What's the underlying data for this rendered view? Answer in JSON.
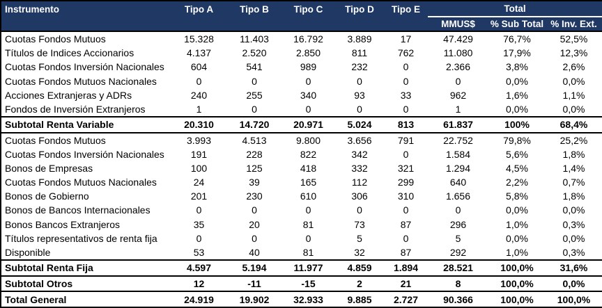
{
  "chart_data": {
    "type": "table",
    "header": {
      "instrument_label": "Instrumento",
      "type_columns": [
        "Tipo A",
        "Tipo B",
        "Tipo C",
        "Tipo D",
        "Tipo E"
      ],
      "total_label": "Total",
      "total_subcolumns": [
        "MMUS$",
        "% Sub Total",
        "% Inv. Ext."
      ]
    },
    "rows": [
      {
        "label": "Cuotas Fondos Mutuos",
        "values": [
          "15.328",
          "11.403",
          "16.792",
          "3.889",
          "17",
          "47.429",
          "76,7%",
          "52,5%"
        ],
        "bold": false
      },
      {
        "label": "Títulos de Indices Accionarios",
        "values": [
          "4.137",
          "2.520",
          "2.850",
          "811",
          "762",
          "11.080",
          "17,9%",
          "12,3%"
        ],
        "bold": false
      },
      {
        "label": "Cuotas Fondos Inversión Nacionales",
        "values": [
          "604",
          "541",
          "989",
          "232",
          "0",
          "2.366",
          "3,8%",
          "2,6%"
        ],
        "bold": false
      },
      {
        "label": "Cuotas Fondos Mutuos Nacionales",
        "values": [
          "0",
          "0",
          "0",
          "0",
          "0",
          "0",
          "0,0%",
          "0,0%"
        ],
        "bold": false
      },
      {
        "label": "Acciones Extranjeras y ADRs",
        "values": [
          "240",
          "255",
          "340",
          "93",
          "33",
          "962",
          "1,6%",
          "1,1%"
        ],
        "bold": false
      },
      {
        "label": "Fondos de Inversión Extranjeros",
        "values": [
          "1",
          "0",
          "0",
          "0",
          "0",
          "1",
          "0,0%",
          "0,0%"
        ],
        "bold": false
      },
      {
        "label": "Subtotal Renta Variable",
        "values": [
          "20.310",
          "14.720",
          "20.971",
          "5.024",
          "813",
          "61.837",
          "100%",
          "68,4%"
        ],
        "bold": true
      },
      {
        "label": "Cuotas Fondos Mutuos",
        "values": [
          "3.993",
          "4.513",
          "9.800",
          "3.656",
          "791",
          "22.752",
          "79,8%",
          "25,2%"
        ],
        "bold": false
      },
      {
        "label": "Cuotas Fondos Inversión Nacionales",
        "values": [
          "191",
          "228",
          "822",
          "342",
          "0",
          "1.584",
          "5,6%",
          "1,8%"
        ],
        "bold": false
      },
      {
        "label": "Bonos de Empresas",
        "values": [
          "100",
          "125",
          "418",
          "332",
          "321",
          "1.294",
          "4,5%",
          "1,4%"
        ],
        "bold": false
      },
      {
        "label": "Cuotas Fondos Mutuos Nacionales",
        "values": [
          "24",
          "39",
          "165",
          "112",
          "299",
          "640",
          "2,2%",
          "0,7%"
        ],
        "bold": false
      },
      {
        "label": "Bonos de Gobierno",
        "values": [
          "201",
          "230",
          "610",
          "306",
          "310",
          "1.656",
          "5,8%",
          "1,8%"
        ],
        "bold": false
      },
      {
        "label": "Bonos de Bancos Internacionales",
        "values": [
          "0",
          "0",
          "0",
          "0",
          "0",
          "0",
          "0,0%",
          "0,0%"
        ],
        "bold": false
      },
      {
        "label": "Bonos Bancos Extranjeros",
        "values": [
          "35",
          "20",
          "81",
          "73",
          "87",
          "296",
          "1,0%",
          "0,3%"
        ],
        "bold": false
      },
      {
        "label": "Títulos representativos de renta fija",
        "values": [
          "0",
          "0",
          "0",
          "5",
          "0",
          "5",
          "0,0%",
          "0,0%"
        ],
        "bold": false
      },
      {
        "label": "Disponible",
        "values": [
          "53",
          "40",
          "81",
          "32",
          "87",
          "292",
          "1,0%",
          "0,3%"
        ],
        "bold": false
      },
      {
        "label": "Subtotal Renta Fija",
        "values": [
          "4.597",
          "5.194",
          "11.977",
          "4.859",
          "1.894",
          "28.521",
          "100,0%",
          "31,6%"
        ],
        "bold": true
      },
      {
        "label": "Subtotal Otros",
        "values": [
          "12",
          "-11",
          "-15",
          "2",
          "21",
          "8",
          "100,0%",
          "0,0%"
        ],
        "bold": true
      },
      {
        "label": "Total General",
        "values": [
          "24.919",
          "19.902",
          "32.933",
          "9.885",
          "2.727",
          "90.366",
          "100,0%",
          "100,0%"
        ],
        "bold": true
      }
    ]
  },
  "colors": {
    "header_bg": "#1f3864",
    "header_text": "#ffffff",
    "border": "#000000",
    "body_bg": "#ffffff",
    "body_text": "#000000"
  }
}
